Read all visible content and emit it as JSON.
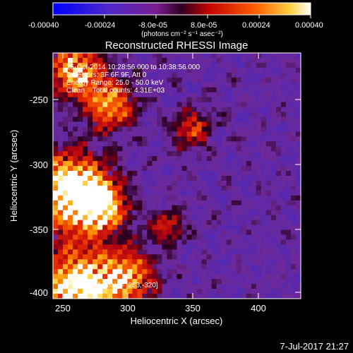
{
  "colorbar": {
    "tick_labels": [
      "-0.00040",
      "-0.00024",
      "-8.0e-05",
      "8.0e-05",
      "0.00024",
      "0.00040"
    ],
    "unit_label": "(photons cm⁻² s⁻¹ asec⁻²)",
    "colors": [
      "#0000ff",
      "#4030c0",
      "#7020a0",
      "#b00000",
      "#ff4000",
      "#ffb000",
      "#ffffff"
    ]
  },
  "title": "Reconstructed RHESSI Image",
  "annotations": [
    "25-Oct-2014 10:28:56.000 to 10:38:56.000",
    "Detectors: 3F 6F 9F, Att 0",
    "Energy Range: 25.0 - 50.0 keV",
    "Clean    Total counts: 4.31E+03"
  ],
  "peak_label": "Position of Peak = [263,-320]",
  "x_axis": {
    "label": "Heliocentric X (arcsec)",
    "ticks": [
      "250",
      "300",
      "350",
      "400"
    ],
    "range": [
      242,
      432
    ]
  },
  "y_axis": {
    "label": "Heliocentric Y (arcsec)",
    "ticks": [
      "-250",
      "-300",
      "-350",
      "-400"
    ],
    "range": [
      -407,
      -222
    ]
  },
  "timestamp": "7-Jul-2017 21:27"
}
